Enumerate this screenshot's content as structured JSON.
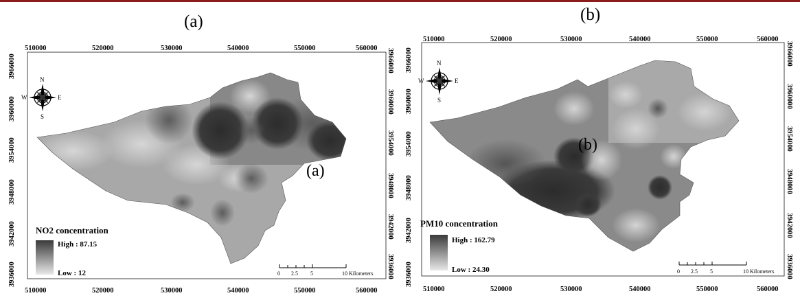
{
  "panels": [
    {
      "label": "(a)",
      "inner_label": "(a)",
      "x_ticks": [
        "510000",
        "520000",
        "530000",
        "540000",
        "550000",
        "560000"
      ],
      "y_ticks": [
        "3966000",
        "3960000",
        "3954000",
        "3948000",
        "3942000",
        "3936000"
      ],
      "legend": {
        "title": "NO2 concentration",
        "high": "High : 87.15",
        "low": "Low : 12"
      },
      "scalebar": {
        "ticks": [
          "0",
          "2.5",
          "5",
          "10 Kilometers"
        ]
      },
      "north_arrow": {
        "n": "N",
        "s": "S",
        "e": "E",
        "w": "W"
      }
    },
    {
      "label": "(b)",
      "inner_label": "(b)",
      "x_ticks": [
        "510000",
        "520000",
        "530000",
        "540000",
        "550000",
        "560000"
      ],
      "y_ticks": [
        "3966000",
        "3960000",
        "3954000",
        "3948000",
        "3942000",
        "3936000"
      ],
      "legend": {
        "title": "PM10 concentration",
        "high": "High : 162.79",
        "low": "Low : 24.30"
      },
      "scalebar": {
        "ticks": [
          "0",
          "2.5",
          "5",
          "10 Kilometers"
        ]
      },
      "north_arrow": {
        "n": "N",
        "s": "S",
        "e": "E",
        "w": "W"
      }
    }
  ]
}
